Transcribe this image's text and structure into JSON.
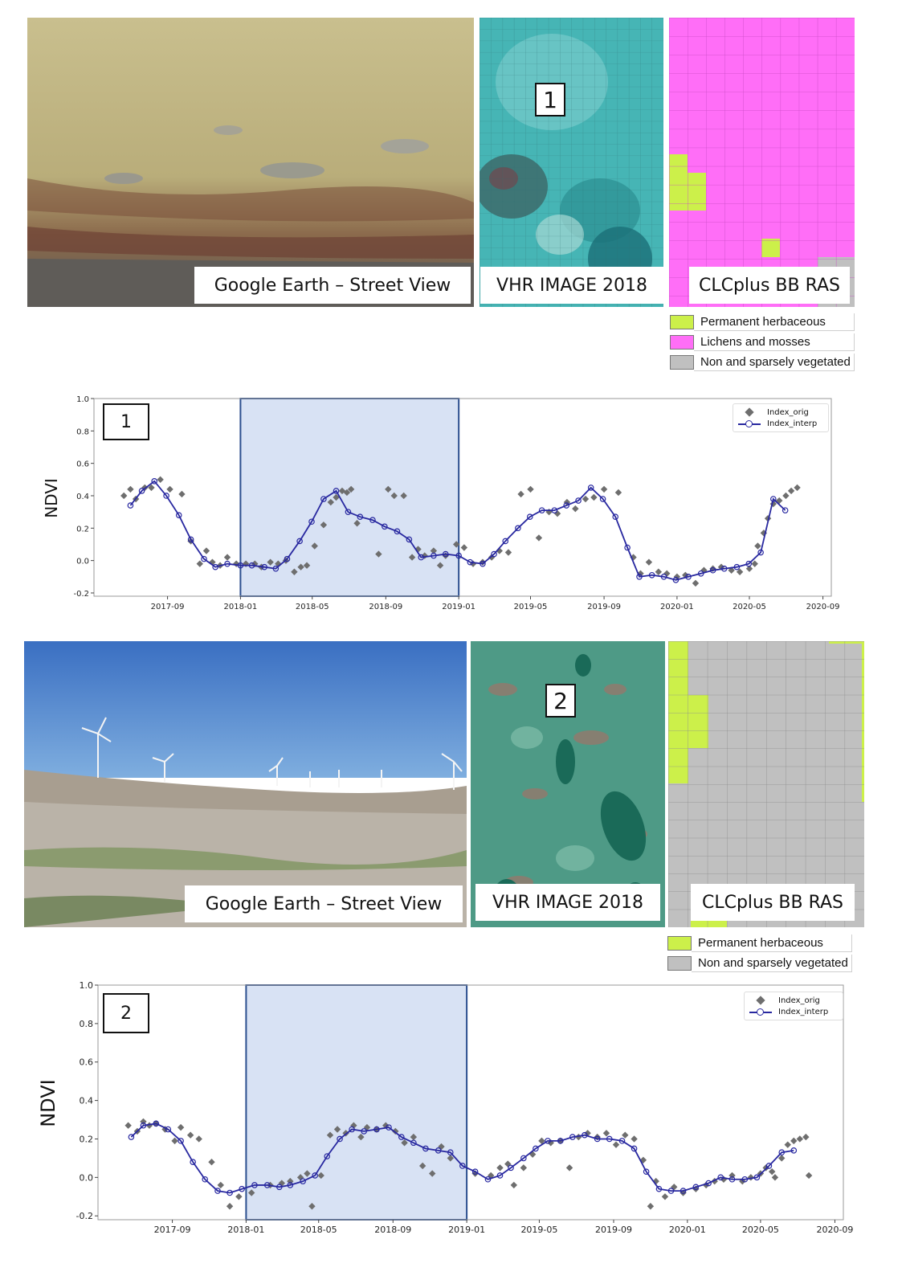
{
  "colors": {
    "permanent_herbaceous": "#ccf04a",
    "lichens_and_mosses": "#ff6ef7",
    "non_and_sparsely_vegetated": "#c0c0c0",
    "highlight": "#d8e2f4",
    "highlight_border": "#2c4f8f",
    "interp_line": "#2828a0",
    "orig_points": "#6e6e6e"
  },
  "panels": [
    {
      "id": "1",
      "photo_caption": "Google Earth – Street View",
      "vhr_caption": "VHR IMAGE 2018",
      "vhr_label": "1",
      "clc_caption": "CLCplus BB RAS",
      "legend": [
        {
          "label": "Permanent herbaceous",
          "color_key": "permanent_herbaceous"
        },
        {
          "label": "Lichens and mosses",
          "color_key": "lichens_and_mosses"
        },
        {
          "label": "Non and sparsely vegetated",
          "color_key": "non_and_sparsely_vegetated"
        }
      ]
    },
    {
      "id": "2",
      "photo_caption": "Google Earth – Street View",
      "vhr_caption": "VHR IMAGE 2018",
      "vhr_label": "2",
      "clc_caption": "CLCplus BB RAS",
      "legend": [
        {
          "label": "Permanent herbaceous",
          "color_key": "permanent_herbaceous"
        },
        {
          "label": "Non and sparsely vegetated",
          "color_key": "non_and_sparsely_vegetated"
        }
      ]
    }
  ],
  "chart_data": [
    {
      "type": "line",
      "panel_label": "1",
      "ylabel": "NDVI",
      "xlabel": "",
      "ylim": [
        -0.22,
        1.0
      ],
      "xlim": [
        "2017-05-01",
        "2020-09-15"
      ],
      "yticks": [
        "1.0",
        "0.8",
        "0.6",
        "0.4",
        "0.2",
        "0.0",
        "-0.2"
      ],
      "ytick_values": [
        1.0,
        0.8,
        0.6,
        0.4,
        0.2,
        0.0,
        -0.2
      ],
      "xticks": [
        "2017-09",
        "2018-01",
        "2018-05",
        "2018-09",
        "2019-01",
        "2019-05",
        "2019-09",
        "2020-01",
        "2020-05",
        "2020-09"
      ],
      "highlight_range": [
        "2018-01-01",
        "2019-01-01"
      ],
      "legend": [
        "Index_orig",
        "Index_interp"
      ],
      "legend_position": "top-right",
      "series": [
        {
          "name": "Index_interp",
          "x": [
            "2017-07-01",
            "2017-07-20",
            "2017-08-10",
            "2017-08-30",
            "2017-09-20",
            "2017-10-10",
            "2017-11-01",
            "2017-11-20",
            "2017-12-10",
            "2018-01-01",
            "2018-01-20",
            "2018-02-10",
            "2018-03-01",
            "2018-03-20",
            "2018-04-10",
            "2018-04-30",
            "2018-05-20",
            "2018-06-10",
            "2018-06-30",
            "2018-07-20",
            "2018-08-10",
            "2018-08-30",
            "2018-09-20",
            "2018-10-10",
            "2018-10-30",
            "2018-11-20",
            "2018-12-10",
            "2019-01-01",
            "2019-01-20",
            "2019-02-10",
            "2019-03-01",
            "2019-03-20",
            "2019-04-10",
            "2019-04-30",
            "2019-05-20",
            "2019-06-10",
            "2019-06-30",
            "2019-07-20",
            "2019-08-10",
            "2019-08-30",
            "2019-09-20",
            "2019-10-10",
            "2019-10-30",
            "2019-11-20",
            "2019-12-10",
            "2019-12-30",
            "2020-01-20",
            "2020-02-10",
            "2020-03-01",
            "2020-03-20",
            "2020-04-10",
            "2020-04-30",
            "2020-05-20",
            "2020-06-10",
            "2020-06-30"
          ],
          "y": [
            0.34,
            0.43,
            0.49,
            0.4,
            0.28,
            0.13,
            0.01,
            -0.04,
            -0.02,
            -0.03,
            -0.03,
            -0.04,
            -0.05,
            0.01,
            0.12,
            0.24,
            0.38,
            0.43,
            0.3,
            0.27,
            0.25,
            0.21,
            0.18,
            0.13,
            0.02,
            0.03,
            0.04,
            0.03,
            -0.01,
            -0.02,
            0.04,
            0.12,
            0.2,
            0.27,
            0.31,
            0.31,
            0.34,
            0.37,
            0.45,
            0.38,
            0.27,
            0.08,
            -0.1,
            -0.09,
            -0.1,
            -0.12,
            -0.1,
            -0.08,
            -0.06,
            -0.05,
            -0.04,
            -0.02,
            0.05,
            0.38,
            0.31
          ]
        },
        {
          "name": "Index_orig",
          "x": [
            "2017-06-20",
            "2017-07-01",
            "2017-07-10",
            "2017-07-25",
            "2017-08-05",
            "2017-08-20",
            "2017-09-05",
            "2017-09-25",
            "2017-10-10",
            "2017-10-25",
            "2017-11-05",
            "2017-11-15",
            "2017-11-28",
            "2017-12-10",
            "2017-12-25",
            "2018-01-10",
            "2018-01-25",
            "2018-02-05",
            "2018-02-20",
            "2018-03-05",
            "2018-03-18",
            "2018-04-01",
            "2018-04-12",
            "2018-04-22",
            "2018-05-05",
            "2018-05-20",
            "2018-06-01",
            "2018-06-10",
            "2018-06-20",
            "2018-06-28",
            "2018-07-05",
            "2018-07-15",
            "2018-08-20",
            "2018-09-05",
            "2018-09-15",
            "2018-10-01",
            "2018-10-15",
            "2018-10-25",
            "2018-11-05",
            "2018-11-20",
            "2018-12-01",
            "2018-12-10",
            "2018-12-28",
            "2019-01-10",
            "2019-01-25",
            "2019-02-10",
            "2019-02-25",
            "2019-03-10",
            "2019-03-25",
            "2019-04-15",
            "2019-05-01",
            "2019-05-15",
            "2019-06-01",
            "2019-06-15",
            "2019-07-01",
            "2019-07-15",
            "2019-08-01",
            "2019-08-15",
            "2019-09-01",
            "2019-09-25",
            "2019-10-20",
            "2019-11-01",
            "2019-11-15",
            "2019-12-01",
            "2019-12-15",
            "2020-01-01",
            "2020-01-15",
            "2020-02-01",
            "2020-02-15",
            "2020-03-01",
            "2020-03-15",
            "2020-04-01",
            "2020-04-15",
            "2020-05-01",
            "2020-05-10",
            "2020-05-15",
            "2020-05-25",
            "2020-06-01",
            "2020-06-10",
            "2020-06-20",
            "2020-07-01",
            "2020-07-10",
            "2020-07-20"
          ],
          "y": [
            0.4,
            0.44,
            0.38,
            0.45,
            0.45,
            0.5,
            0.44,
            0.41,
            0.12,
            -0.02,
            0.06,
            -0.01,
            -0.03,
            0.02,
            -0.02,
            -0.02,
            -0.02,
            -0.04,
            -0.01,
            -0.02,
            0.0,
            -0.07,
            -0.04,
            -0.03,
            0.09,
            0.22,
            0.36,
            0.39,
            0.43,
            0.42,
            0.44,
            0.23,
            0.04,
            0.44,
            0.4,
            0.4,
            0.02,
            0.07,
            0.03,
            0.06,
            -0.03,
            0.03,
            0.1,
            0.08,
            -0.02,
            -0.01,
            0.02,
            0.06,
            0.05,
            0.41,
            0.44,
            0.14,
            0.3,
            0.29,
            0.36,
            0.32,
            0.38,
            0.39,
            0.44,
            0.42,
            0.02,
            -0.08,
            -0.01,
            -0.07,
            -0.08,
            -0.1,
            -0.09,
            -0.14,
            -0.06,
            -0.05,
            -0.04,
            -0.06,
            -0.07,
            -0.05,
            -0.02,
            0.09,
            0.17,
            0.26,
            0.35,
            0.37,
            0.4,
            0.43,
            0.45
          ]
        }
      ]
    },
    {
      "type": "line",
      "panel_label": "2",
      "ylabel": "NDVI",
      "xlabel": "",
      "ylim": [
        -0.22,
        1.0
      ],
      "xlim": [
        "2017-05-01",
        "2020-09-15"
      ],
      "yticks": [
        "1.0",
        "0.8",
        "0.6",
        "0.4",
        "0.2",
        "0.0",
        "-0.2"
      ],
      "ytick_values": [
        1.0,
        0.8,
        0.6,
        0.4,
        0.2,
        0.0,
        -0.2
      ],
      "xticks": [
        "2017-09",
        "2018-01",
        "2018-05",
        "2018-09",
        "2019-01",
        "2019-05",
        "2019-09",
        "2020-01",
        "2020-05",
        "2020-09"
      ],
      "highlight_range": [
        "2018-01-01",
        "2019-01-01"
      ],
      "legend": [
        "Index_orig",
        "Index_interp"
      ],
      "legend_position": "top-right",
      "series": [
        {
          "name": "Index_interp",
          "x": [
            "2017-06-25",
            "2017-07-15",
            "2017-08-05",
            "2017-08-25",
            "2017-09-15",
            "2017-10-05",
            "2017-10-25",
            "2017-11-15",
            "2017-12-05",
            "2017-12-25",
            "2018-01-15",
            "2018-02-05",
            "2018-02-25",
            "2018-03-15",
            "2018-04-05",
            "2018-04-25",
            "2018-05-15",
            "2018-06-05",
            "2018-06-25",
            "2018-07-15",
            "2018-08-05",
            "2018-08-25",
            "2018-09-15",
            "2018-10-05",
            "2018-10-25",
            "2018-11-15",
            "2018-12-05",
            "2018-12-25",
            "2019-01-15",
            "2019-02-05",
            "2019-02-25",
            "2019-03-15",
            "2019-04-05",
            "2019-04-25",
            "2019-05-15",
            "2019-06-05",
            "2019-06-25",
            "2019-07-15",
            "2019-08-05",
            "2019-08-25",
            "2019-09-15",
            "2019-10-05",
            "2019-10-25",
            "2019-11-15",
            "2019-12-05",
            "2019-12-25",
            "2020-01-15",
            "2020-02-05",
            "2020-02-25",
            "2020-03-15",
            "2020-04-05",
            "2020-04-25",
            "2020-05-15",
            "2020-06-05",
            "2020-06-25"
          ],
          "y": [
            0.21,
            0.27,
            0.28,
            0.25,
            0.19,
            0.08,
            -0.01,
            -0.07,
            -0.08,
            -0.06,
            -0.04,
            -0.04,
            -0.05,
            -0.04,
            -0.02,
            0.01,
            0.11,
            0.2,
            0.25,
            0.24,
            0.25,
            0.26,
            0.21,
            0.18,
            0.15,
            0.14,
            0.13,
            0.06,
            0.03,
            -0.01,
            0.01,
            0.05,
            0.1,
            0.15,
            0.19,
            0.19,
            0.21,
            0.22,
            0.2,
            0.2,
            0.19,
            0.15,
            0.03,
            -0.06,
            -0.07,
            -0.07,
            -0.05,
            -0.03,
            0.0,
            -0.01,
            -0.01,
            0.0,
            0.06,
            0.13,
            0.14
          ]
        },
        {
          "name": "Index_orig",
          "x": [
            "2017-06-20",
            "2017-07-05",
            "2017-07-15",
            "2017-07-25",
            "2017-08-05",
            "2017-08-20",
            "2017-09-05",
            "2017-09-15",
            "2017-10-01",
            "2017-10-15",
            "2017-11-05",
            "2017-11-20",
            "2017-12-05",
            "2017-12-20",
            "2018-01-10",
            "2018-02-10",
            "2018-03-01",
            "2018-03-15",
            "2018-04-01",
            "2018-04-12",
            "2018-04-20",
            "2018-05-05",
            "2018-05-20",
            "2018-06-01",
            "2018-06-15",
            "2018-06-28",
            "2018-07-10",
            "2018-07-20",
            "2018-08-05",
            "2018-08-20",
            "2018-09-05",
            "2018-09-20",
            "2018-10-05",
            "2018-10-20",
            "2018-11-05",
            "2018-11-20",
            "2018-12-05",
            "2019-01-15",
            "2019-02-10",
            "2019-02-25",
            "2019-03-10",
            "2019-03-20",
            "2019-04-05",
            "2019-04-20",
            "2019-05-05",
            "2019-05-20",
            "2019-06-05",
            "2019-06-20",
            "2019-07-05",
            "2019-07-20",
            "2019-08-05",
            "2019-08-20",
            "2019-09-05",
            "2019-09-20",
            "2019-10-05",
            "2019-10-20",
            "2019-11-01",
            "2019-11-10",
            "2019-11-25",
            "2019-12-10",
            "2019-12-25",
            "2020-01-15",
            "2020-02-01",
            "2020-02-15",
            "2020-03-01",
            "2020-03-15",
            "2020-04-01",
            "2020-04-15",
            "2020-05-01",
            "2020-05-10",
            "2020-05-20",
            "2020-05-25",
            "2020-06-05",
            "2020-06-15",
            "2020-06-25",
            "2020-07-05",
            "2020-07-15",
            "2020-07-20"
          ],
          "y": [
            0.27,
            0.24,
            0.29,
            0.27,
            0.28,
            0.25,
            0.19,
            0.26,
            0.22,
            0.2,
            0.08,
            -0.04,
            -0.15,
            -0.1,
            -0.08,
            -0.04,
            -0.03,
            -0.02,
            0.0,
            0.02,
            -0.15,
            0.01,
            0.22,
            0.25,
            0.23,
            0.27,
            0.21,
            0.26,
            0.25,
            0.27,
            0.24,
            0.18,
            0.21,
            0.06,
            0.02,
            0.16,
            0.1,
            0.02,
            0.01,
            0.05,
            0.07,
            -0.04,
            0.05,
            0.12,
            0.19,
            0.18,
            0.19,
            0.05,
            0.21,
            0.23,
            0.21,
            0.23,
            0.17,
            0.22,
            0.2,
            0.09,
            -0.15,
            -0.02,
            -0.1,
            -0.05,
            -0.08,
            -0.06,
            -0.04,
            -0.02,
            -0.01,
            0.01,
            -0.02,
            0.0,
            0.02,
            0.05,
            0.03,
            0.0,
            0.1,
            0.17,
            0.19,
            0.2,
            0.21,
            0.01
          ]
        }
      ]
    }
  ]
}
